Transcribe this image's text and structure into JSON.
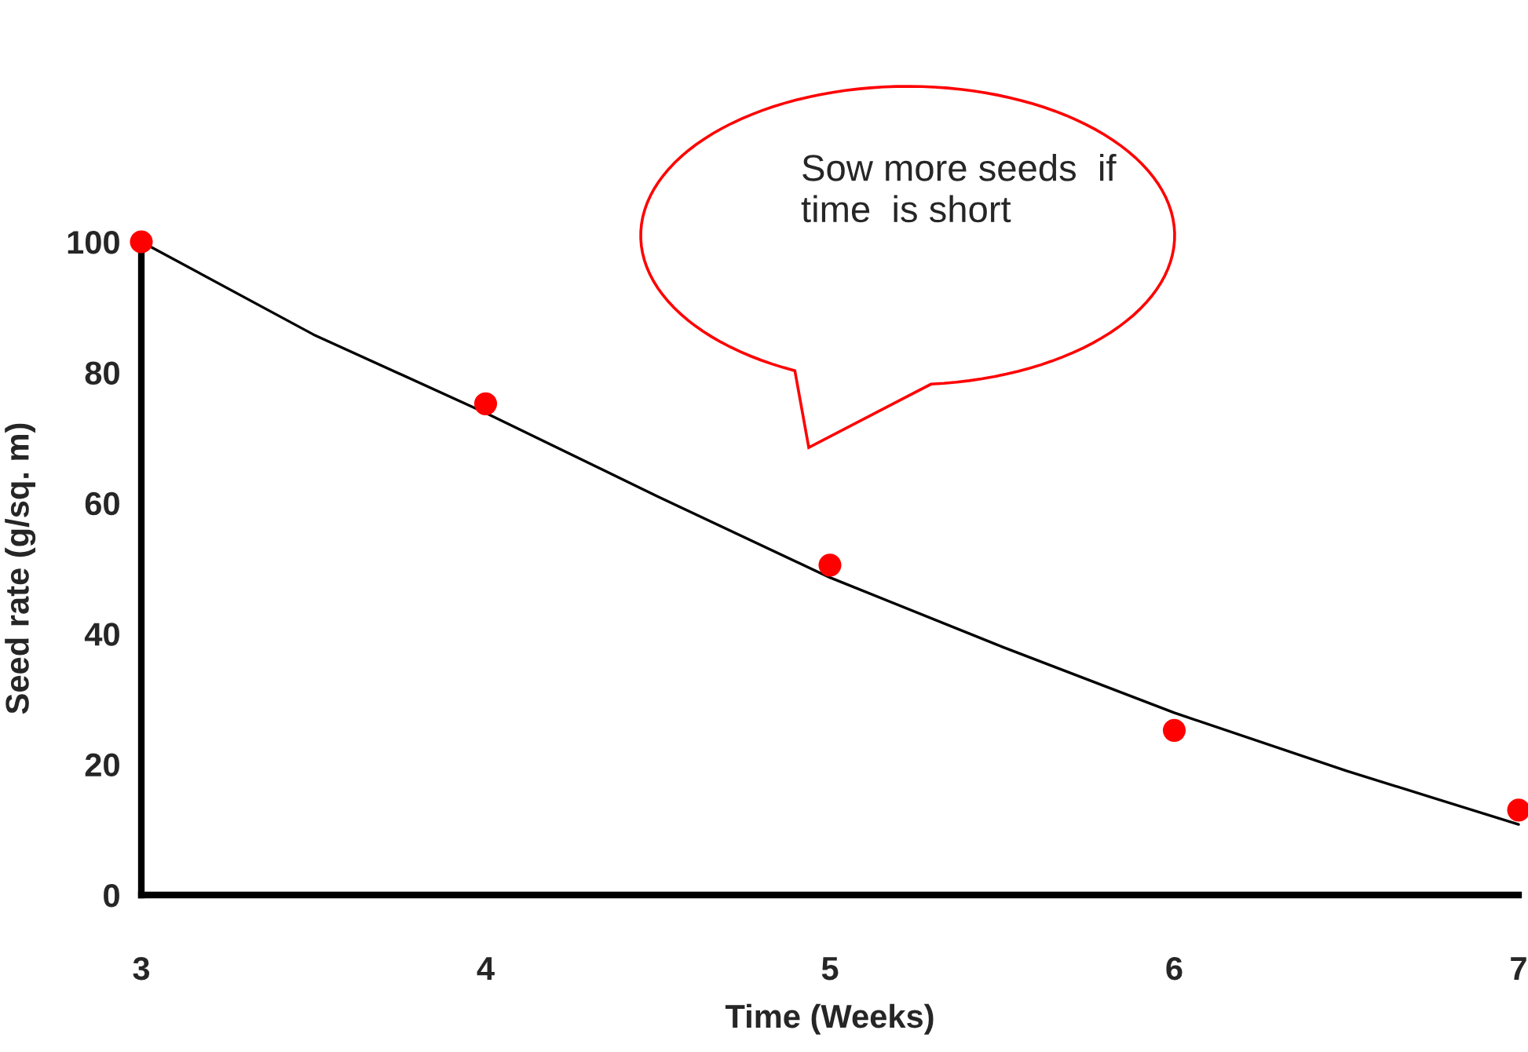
{
  "chart_data": {
    "type": "scatter",
    "xlabel": "Time (Weeks)",
    "ylabel": "Seed rate (g/sq. m)",
    "x": [
      3,
      4,
      5,
      6,
      7
    ],
    "series": [
      {
        "color": "#ff0000",
        "marker": "circle",
        "values": [
          100,
          75.2,
          50.5,
          25.2,
          13
        ]
      },
      {
        "type": "line",
        "color": "#000000",
        "marker": "none",
        "x": [
          3,
          3.5,
          4,
          4.5,
          5,
          5.5,
          6,
          6.5,
          7
        ],
        "values": [
          100,
          85.8,
          73.8,
          61,
          48.6,
          38,
          27.9,
          19,
          10.8
        ]
      }
    ],
    "xlim": [
      3,
      7
    ],
    "ylim": [
      0,
      100
    ],
    "xticks": [
      3,
      4,
      5,
      6,
      7
    ],
    "yticks": [
      0,
      20,
      40,
      60,
      80,
      100
    ],
    "grid": false,
    "annotations": [
      "Sow more seeds  if\ntime  is short"
    ]
  }
}
